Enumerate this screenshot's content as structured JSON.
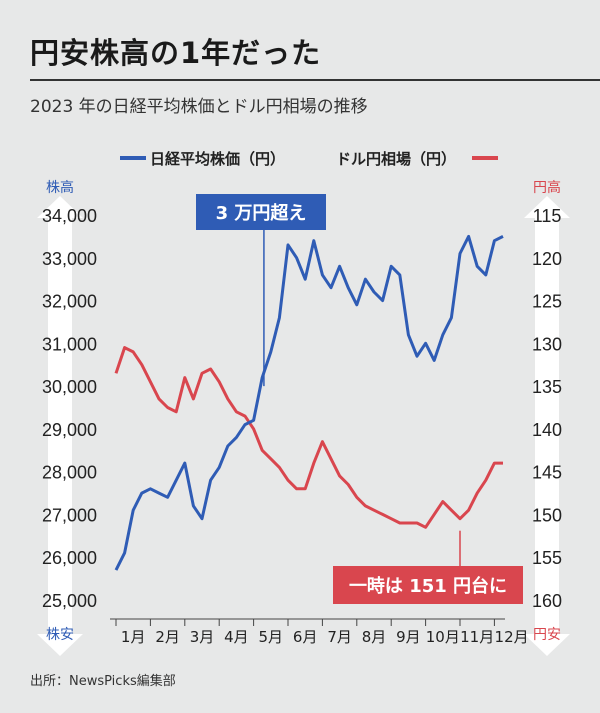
{
  "title": "円安株高の1年だった",
  "subtitle": "2023 年の日経平均株価とドル円相場の推移",
  "source": "出所：NewsPicks編集部",
  "colors": {
    "nikkei": "#2f5cb5",
    "usdjpy": "#d9464e",
    "axis_arrow": "#ffffff",
    "label_blue": "#2f5cb5",
    "label_red": "#d9464e"
  },
  "chart_data": {
    "type": "line",
    "title": "2023 年の日経平均株価とドル円相場の推移",
    "x": [
      1,
      1.25,
      1.5,
      1.75,
      2,
      2.25,
      2.5,
      2.75,
      3,
      3.25,
      3.5,
      3.75,
      4,
      4.25,
      4.5,
      4.75,
      5,
      5.25,
      5.5,
      5.75,
      6,
      6.25,
      6.5,
      6.75,
      7,
      7.25,
      7.5,
      7.75,
      8,
      8.25,
      8.5,
      8.75,
      9,
      9.25,
      9.5,
      9.75,
      10,
      10.25,
      10.5,
      10.75,
      11,
      11.25,
      11.5,
      11.75,
      12,
      12.25
    ],
    "x_ticks": [
      "1月",
      "2月",
      "3月",
      "4月",
      "5月",
      "6月",
      "7月",
      "8月",
      "9月",
      "10月",
      "11月",
      "12月"
    ],
    "series": [
      {
        "name": "日経平均株価（円）",
        "axis": "left",
        "values": [
          25700,
          26100,
          27100,
          27500,
          27600,
          27500,
          27400,
          27800,
          28200,
          27200,
          26900,
          27800,
          28100,
          28600,
          28800,
          29100,
          29200,
          30200,
          30800,
          31600,
          33300,
          33000,
          32500,
          33400,
          32600,
          32300,
          32800,
          32300,
          31900,
          32500,
          32200,
          32000,
          32800,
          32600,
          31200,
          30700,
          31000,
          30600,
          31200,
          31600,
          33100,
          33500,
          32800,
          32600,
          33400,
          33500
        ]
      },
      {
        "name": "ドル円相場（円）",
        "axis": "right",
        "values": [
          133.5,
          130.5,
          131,
          132.5,
          134.5,
          136.5,
          137.5,
          138,
          134,
          136.5,
          133.5,
          133,
          134.5,
          136.5,
          138,
          138.5,
          140,
          142.5,
          143.5,
          144.5,
          146,
          147,
          147,
          144,
          141.5,
          143.5,
          145.5,
          146.5,
          148,
          149,
          149.5,
          150,
          150.5,
          151,
          151,
          151,
          151.5,
          150,
          148.5,
          149.5,
          150.5,
          149.5,
          147.5,
          146,
          144,
          144
        ]
      }
    ],
    "y_left": {
      "label": "株高",
      "bottom_label": "株安",
      "ticks": [
        "34,000",
        "33,000",
        "32,000",
        "31,000",
        "30,000",
        "29,000",
        "28,000",
        "27,000",
        "26,000",
        "25,000"
      ],
      "range": [
        25000,
        34000
      ]
    },
    "y_right": {
      "label": "円高",
      "bottom_label": "円安",
      "ticks": [
        "115",
        "120",
        "125",
        "130",
        "135",
        "140",
        "145",
        "150",
        "155",
        "160"
      ],
      "range": [
        160,
        115
      ],
      "inverted": true
    },
    "legend": [
      "日経平均株価（円）",
      "ドル円相場（円）"
    ],
    "annotations": [
      {
        "text": "3 万円超え",
        "series": "日経平均株価（円）",
        "x": 5.3,
        "value": 30000
      },
      {
        "text": "一時は 151 円台に",
        "series": "ドル円相場（円）",
        "x": 11,
        "value": 151.9
      }
    ]
  }
}
